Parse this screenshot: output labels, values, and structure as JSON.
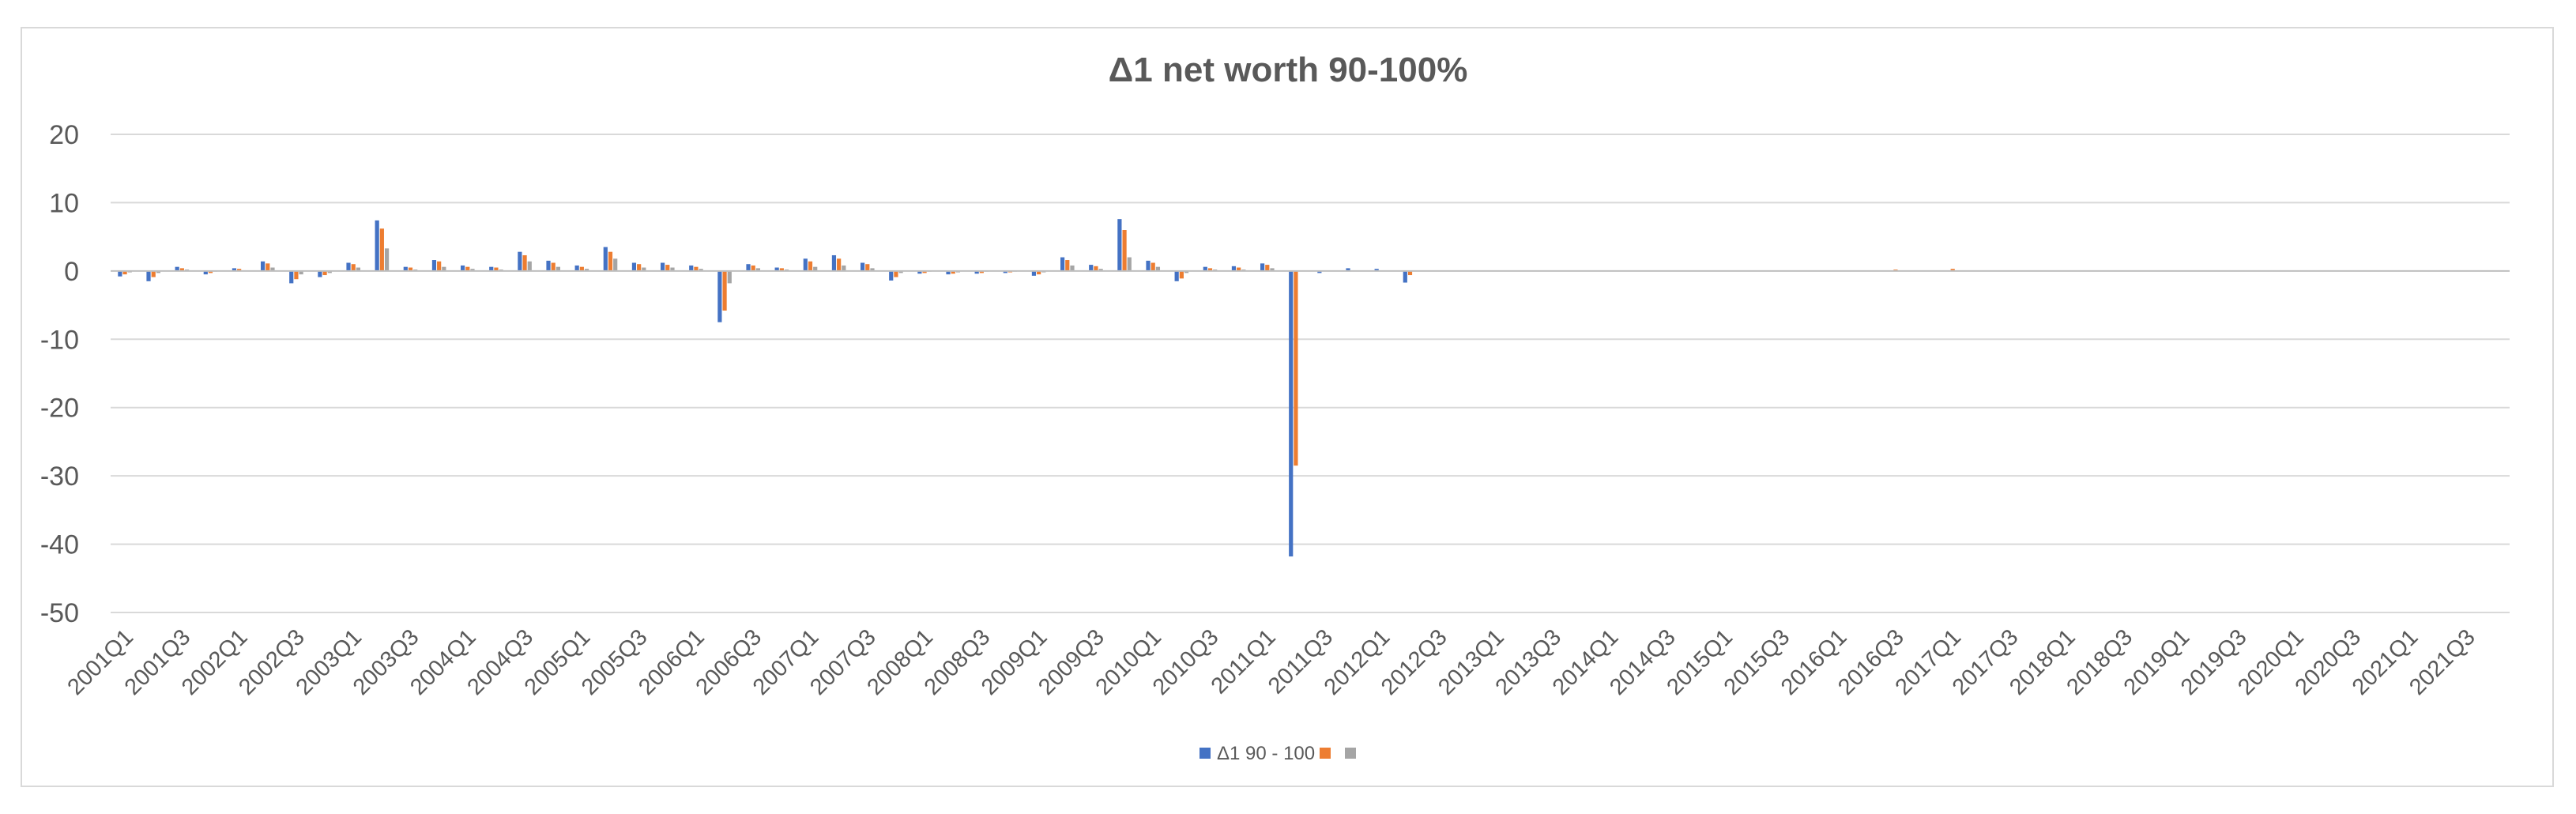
{
  "chart_data": {
    "type": "bar",
    "title": "Δ1 net worth 90-100%",
    "xlabel": "",
    "ylabel": "",
    "ylim": [
      -50,
      20
    ],
    "yticks": [
      20,
      10,
      0,
      -10,
      -20,
      -30,
      -40,
      -50
    ],
    "grid": true,
    "legend": "bottom",
    "colors": [
      "#4472c4",
      "#ed7d31",
      "#a5a5a5"
    ],
    "categories": [
      "2001Q1",
      "2001Q2",
      "2001Q3",
      "2001Q4",
      "2002Q1",
      "2002Q2",
      "2002Q3",
      "2002Q4",
      "2003Q1",
      "2003Q2",
      "2003Q3",
      "2003Q4",
      "2004Q1",
      "2004Q2",
      "2004Q3",
      "2004Q4",
      "2005Q1",
      "2005Q2",
      "2005Q3",
      "2005Q4",
      "2006Q1",
      "2006Q2",
      "2006Q3",
      "2006Q4",
      "2007Q1",
      "2007Q2",
      "2007Q3",
      "2007Q4",
      "2008Q1",
      "2008Q2",
      "2008Q3",
      "2008Q4",
      "2009Q1",
      "2009Q2",
      "2009Q3",
      "2009Q4",
      "2010Q1",
      "2010Q2",
      "2010Q3",
      "2010Q4",
      "2011Q1",
      "2011Q2",
      "2011Q3",
      "2011Q4",
      "2012Q1",
      "2012Q2",
      "2012Q3",
      "2012Q4",
      "2013Q1",
      "2013Q2",
      "2013Q3",
      "2013Q4",
      "2014Q1",
      "2014Q2",
      "2014Q3",
      "2014Q4",
      "2015Q1",
      "2015Q2",
      "2015Q3",
      "2015Q4",
      "2016Q1",
      "2016Q2",
      "2016Q3",
      "2016Q4",
      "2017Q1",
      "2017Q2",
      "2017Q3",
      "2017Q4",
      "2018Q1",
      "2018Q2",
      "2018Q3",
      "2018Q4",
      "2019Q1",
      "2019Q2",
      "2019Q3",
      "2019Q4",
      "2020Q1",
      "2020Q2",
      "2020Q3",
      "2020Q4",
      "2021Q1",
      "2021Q2",
      "2021Q3",
      "2021Q4"
    ],
    "tick_labels": [
      "2001Q1",
      "2001Q3",
      "2002Q1",
      "2002Q3",
      "2003Q1",
      "2003Q3",
      "2004Q1",
      "2004Q3",
      "2005Q1",
      "2005Q3",
      "2006Q1",
      "2006Q3",
      "2007Q1",
      "2007Q3",
      "2008Q1",
      "2008Q3",
      "2009Q1",
      "2009Q3",
      "2010Q1",
      "2010Q3",
      "2011Q1",
      "2011Q3",
      "2012Q1",
      "2012Q3",
      "2013Q1",
      "2013Q3",
      "2014Q1",
      "2014Q3",
      "2015Q1",
      "2015Q3",
      "2016Q1",
      "2016Q3",
      "2017Q1",
      "2017Q3",
      "2018Q1",
      "2018Q3",
      "2019Q1",
      "2019Q3",
      "2020Q1",
      "2020Q3",
      "2021Q1",
      "2021Q3"
    ],
    "series": [
      {
        "name": "Δ1 90 - 100",
        "values": [
          -0.8,
          -1.5,
          0.6,
          -0.5,
          0.4,
          1.4,
          -1.8,
          -0.9,
          1.2,
          7.4,
          0.6,
          1.6,
          0.8,
          0.6,
          2.8,
          1.5,
          0.8,
          3.5,
          1.2,
          1.2,
          0.8,
          -7.5,
          1.0,
          0.5,
          1.8,
          2.3,
          1.2,
          -1.4,
          -0.4,
          -0.5,
          -0.4,
          -0.3,
          -0.7,
          2.0,
          0.9,
          7.6,
          1.5,
          -1.5,
          0.6,
          0.7,
          1.1,
          -41.8,
          -0.3,
          0.4,
          0.3,
          -1.7,
          0,
          0,
          0,
          0,
          0,
          0,
          0,
          0,
          0,
          0,
          0,
          0,
          0,
          0,
          0,
          0,
          0,
          0,
          0,
          0,
          0,
          0,
          0,
          0,
          0,
          0,
          0,
          0,
          0,
          0,
          0,
          0,
          0,
          0,
          0,
          0,
          0,
          0
        ]
      },
      {
        "name": "",
        "values": [
          -0.5,
          -0.9,
          0.4,
          -0.3,
          0.3,
          1.1,
          -1.2,
          -0.6,
          1.0,
          6.2,
          0.5,
          1.4,
          0.6,
          0.5,
          2.3,
          1.2,
          0.6,
          2.8,
          1.0,
          0.9,
          0.6,
          -5.8,
          0.8,
          0.4,
          1.4,
          1.8,
          1.0,
          -0.9,
          -0.3,
          -0.4,
          -0.3,
          -0.2,
          -0.5,
          1.6,
          0.7,
          6.0,
          1.2,
          -1.1,
          0.4,
          0.5,
          0.9,
          -28.5,
          0,
          0,
          0,
          -0.6,
          0,
          0,
          0,
          0,
          0,
          0,
          0,
          0,
          0,
          0,
          0,
          0,
          0,
          0,
          0,
          0,
          0.2,
          0,
          0.3,
          0,
          0,
          0,
          0,
          0,
          0,
          0,
          0,
          0,
          0,
          0,
          0,
          0,
          0,
          0,
          0,
          0,
          0,
          0
        ]
      },
      {
        "name": "",
        "values": [
          -0.2,
          -0.3,
          0.2,
          -0.1,
          0.1,
          0.5,
          -0.5,
          -0.3,
          0.5,
          3.3,
          0.2,
          0.6,
          0.3,
          0.2,
          1.4,
          0.6,
          0.3,
          1.8,
          0.5,
          0.5,
          0.3,
          -1.8,
          0.4,
          0.2,
          0.6,
          0.8,
          0.4,
          -0.3,
          -0.1,
          -0.2,
          -0.1,
          -0.1,
          -0.2,
          0.8,
          0.3,
          2.0,
          0.6,
          -0.3,
          0.2,
          0.2,
          0.4,
          0,
          0,
          0,
          0,
          0,
          0,
          0,
          0,
          0,
          0,
          0,
          0,
          0,
          0,
          0,
          0,
          0,
          0,
          0,
          0,
          0,
          0,
          0,
          0,
          0,
          0,
          0,
          0,
          0,
          0,
          0,
          0,
          0,
          0,
          0,
          0,
          0,
          0,
          0,
          0,
          0,
          0,
          0
        ]
      }
    ]
  }
}
